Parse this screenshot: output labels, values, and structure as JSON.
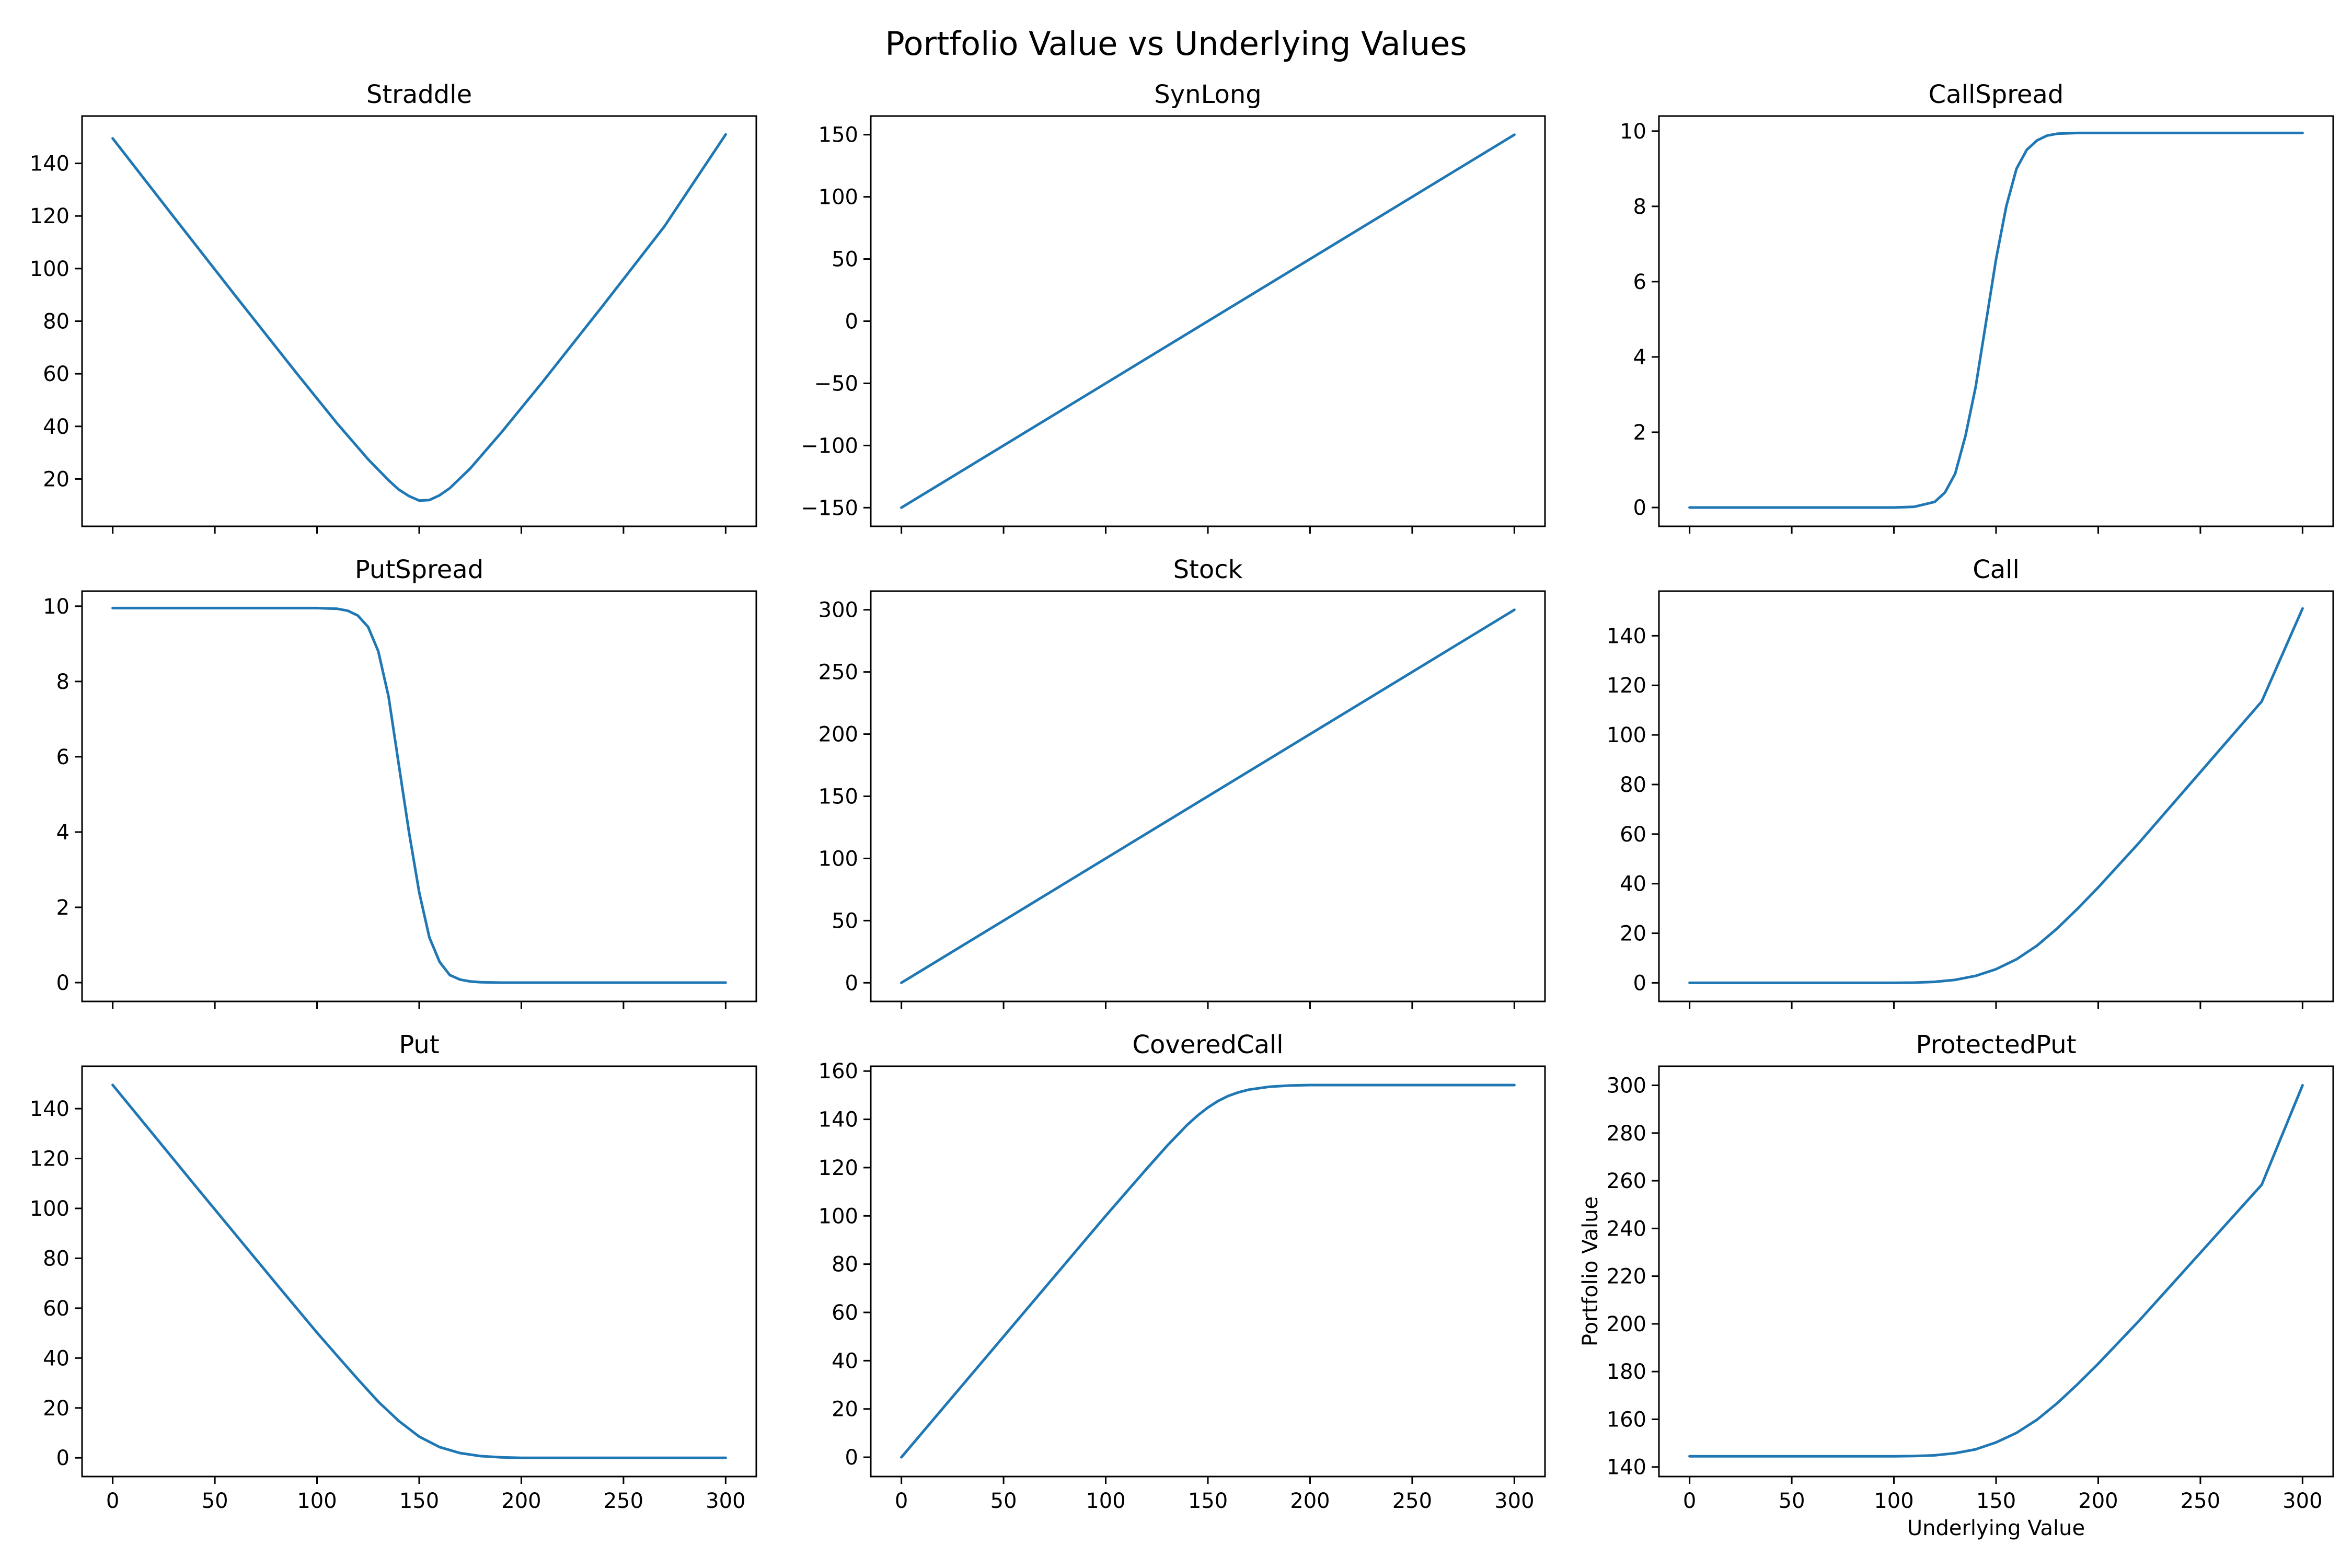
{
  "figure": {
    "title": "Portfolio Value vs Underlying Values",
    "line_color": "#1f77b4"
  },
  "chart_data": [
    {
      "type": "line",
      "title": "Straddle",
      "xlabel": "",
      "ylabel": "",
      "xlim": [
        -15,
        315
      ],
      "ylim": [
        2,
        158
      ],
      "xticks": [
        0,
        50,
        100,
        150,
        200,
        250,
        300
      ],
      "xtick_labels_visible": false,
      "yticks": [
        20,
        40,
        60,
        80,
        100,
        120,
        140
      ],
      "x": [
        0,
        30,
        60,
        90,
        110,
        125,
        135,
        140,
        145,
        150,
        155,
        160,
        165,
        175,
        190,
        210,
        240,
        270,
        300
      ],
      "y": [
        149.5,
        119.5,
        89.7,
        60.2,
        41.0,
        27.5,
        19.5,
        16.0,
        13.5,
        11.8,
        12.0,
        13.8,
        16.5,
        24.0,
        37.5,
        56.5,
        86.0,
        116.0,
        151
      ]
    },
    {
      "type": "line",
      "title": "SynLong",
      "xlabel": "",
      "ylabel": "",
      "xlim": [
        -15,
        315
      ],
      "ylim": [
        -165,
        165
      ],
      "xticks": [
        0,
        50,
        100,
        150,
        200,
        250,
        300
      ],
      "xtick_labels_visible": false,
      "yticks": [
        -150,
        -100,
        -50,
        0,
        50,
        100,
        150
      ],
      "ytick_labels": [
        "−150",
        "−100",
        "−50",
        "0",
        "50",
        "100",
        "150"
      ],
      "x": [
        0,
        300
      ],
      "y": [
        -150,
        150
      ]
    },
    {
      "type": "line",
      "title": "CallSpread",
      "xlabel": "",
      "ylabel": "",
      "xlim": [
        -15,
        315
      ],
      "ylim": [
        -0.5,
        10.4
      ],
      "xticks": [
        0,
        50,
        100,
        150,
        200,
        250,
        300
      ],
      "xtick_labels_visible": false,
      "yticks": [
        0,
        2,
        4,
        6,
        8,
        10
      ],
      "x": [
        0,
        100,
        110,
        120,
        125,
        130,
        135,
        140,
        145,
        150,
        155,
        160,
        165,
        170,
        175,
        180,
        190,
        200,
        300
      ],
      "y": [
        0,
        0,
        0.02,
        0.15,
        0.4,
        0.9,
        1.9,
        3.2,
        4.9,
        6.6,
        8.0,
        9.0,
        9.5,
        9.75,
        9.88,
        9.93,
        9.95,
        9.95,
        9.95
      ]
    },
    {
      "type": "line",
      "title": "PutSpread",
      "xlabel": "",
      "ylabel": "",
      "xlim": [
        -15,
        315
      ],
      "ylim": [
        -0.5,
        10.4
      ],
      "xticks": [
        0,
        50,
        100,
        150,
        200,
        250,
        300
      ],
      "xtick_labels_visible": false,
      "yticks": [
        0,
        2,
        4,
        6,
        8,
        10
      ],
      "x": [
        0,
        100,
        110,
        115,
        120,
        125,
        130,
        135,
        140,
        145,
        150,
        155,
        160,
        165,
        170,
        175,
        180,
        190,
        200,
        300
      ],
      "y": [
        9.95,
        9.95,
        9.93,
        9.88,
        9.75,
        9.45,
        8.8,
        7.6,
        5.8,
        4.0,
        2.4,
        1.2,
        0.55,
        0.2,
        0.08,
        0.03,
        0.01,
        0,
        0,
        0
      ]
    },
    {
      "type": "line",
      "title": "Stock",
      "xlabel": "",
      "ylabel": "",
      "xlim": [
        -15,
        315
      ],
      "ylim": [
        -15,
        315
      ],
      "xticks": [
        0,
        50,
        100,
        150,
        200,
        250,
        300
      ],
      "xtick_labels_visible": false,
      "yticks": [
        0,
        50,
        100,
        150,
        200,
        250,
        300
      ],
      "x": [
        0,
        300
      ],
      "y": [
        0,
        300
      ]
    },
    {
      "type": "line",
      "title": "Call",
      "xlabel": "",
      "ylabel": "",
      "xlim": [
        -15,
        315
      ],
      "ylim": [
        -7.5,
        158
      ],
      "xticks": [
        0,
        50,
        100,
        150,
        200,
        250,
        300
      ],
      "xtick_labels_visible": false,
      "yticks": [
        0,
        20,
        40,
        60,
        80,
        100,
        120,
        140
      ],
      "x": [
        0,
        100,
        110,
        120,
        130,
        140,
        150,
        160,
        170,
        180,
        190,
        200,
        220,
        240,
        260,
        280,
        300
      ],
      "y": [
        0,
        0,
        0.1,
        0.4,
        1.2,
        2.8,
        5.5,
        9.5,
        15.0,
        22.0,
        30.0,
        38.5,
        56.5,
        75.5,
        94.5,
        113.5,
        151
      ]
    },
    {
      "type": "line",
      "title": "Put",
      "xlabel": "",
      "ylabel": "",
      "xlim": [
        -15,
        315
      ],
      "ylim": [
        -7.5,
        157
      ],
      "xticks": [
        0,
        50,
        100,
        150,
        200,
        250,
        300
      ],
      "yticks": [
        0,
        20,
        40,
        60,
        80,
        100,
        120,
        140
      ],
      "x": [
        0,
        40,
        80,
        100,
        110,
        120,
        130,
        140,
        150,
        160,
        170,
        180,
        190,
        200,
        300
      ],
      "y": [
        149.5,
        109.5,
        69.8,
        50.2,
        40.8,
        31.5,
        22.5,
        14.8,
        8.5,
        4.3,
        1.9,
        0.7,
        0.2,
        0,
        0
      ]
    },
    {
      "type": "line",
      "title": "CoveredCall",
      "xlabel": "",
      "ylabel": "",
      "xlim": [
        -15,
        315
      ],
      "ylim": [
        -8,
        162
      ],
      "xticks": [
        0,
        50,
        100,
        150,
        200,
        250,
        300
      ],
      "yticks": [
        0,
        20,
        40,
        60,
        80,
        100,
        120,
        140,
        160
      ],
      "x": [
        0,
        50,
        100,
        120,
        130,
        140,
        145,
        150,
        155,
        160,
        165,
        170,
        180,
        190,
        200,
        300
      ],
      "y": [
        0,
        50,
        100,
        119.5,
        129.0,
        137.8,
        141.6,
        144.9,
        147.6,
        149.7,
        151.2,
        152.3,
        153.5,
        154.0,
        154.2,
        154.2
      ]
    },
    {
      "type": "line",
      "title": "ProtectedPut",
      "xlabel": "Underlying Value",
      "ylabel": "Portfolio Value",
      "xlim": [
        -15,
        315
      ],
      "ylim": [
        136,
        308
      ],
      "xticks": [
        0,
        50,
        100,
        150,
        200,
        250,
        300
      ],
      "yticks": [
        140,
        160,
        180,
        200,
        220,
        240,
        260,
        280,
        300
      ],
      "x": [
        0,
        100,
        110,
        120,
        130,
        140,
        150,
        160,
        170,
        180,
        190,
        200,
        220,
        240,
        260,
        280,
        300
      ],
      "y": [
        144.5,
        144.5,
        144.6,
        144.9,
        145.8,
        147.4,
        150.3,
        154.3,
        159.8,
        166.8,
        174.8,
        183.3,
        201.3,
        220.3,
        239.3,
        258.3,
        300
      ]
    }
  ]
}
